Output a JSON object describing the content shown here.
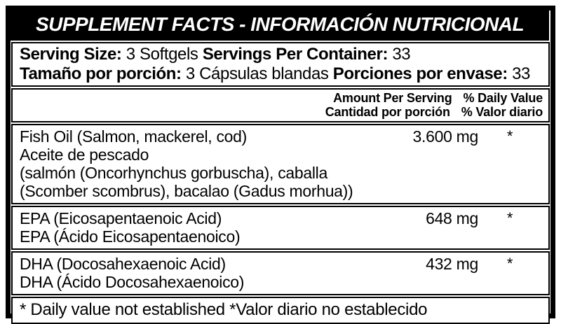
{
  "title": "SUPPLEMENT FACTS - INFORMACIÓN NUTRICIONAL",
  "serving": {
    "line1": {
      "label1": "Serving Size:",
      "value1": "3 Softgels",
      "label2": "Servings Per Container:",
      "value2": "33"
    },
    "line2": {
      "label1": "Tamaño por porción:",
      "value1": "3 Cápsulas blandas",
      "label2": "Porciones por envase:",
      "value2": "33"
    }
  },
  "columns": {
    "amount_en": "Amount Per Serving",
    "amount_es": "Cantidad por porción",
    "dv_en": "% Daily Value",
    "dv_es": "% Valor diario"
  },
  "rows": [
    {
      "lines": [
        "Fish Oil (Salmon, mackerel, cod)",
        "Aceite de pescado",
        "(salmón (Oncorhynchus gorbuscha), caballa",
        "(Scomber scombrus), bacalao (Gadus morhua))"
      ],
      "amount": "3.600 mg",
      "daily_value": "*"
    },
    {
      "lines": [
        "EPA (Eicosapentaenoic Acid)",
        "EPA (Ácido Eicosapentaenoico)"
      ],
      "amount": "648 mg",
      "daily_value": "*"
    },
    {
      "lines": [
        "DHA (Docosahexaenoic Acid)",
        "DHA (Ácido Docosahexaenoico)"
      ],
      "amount": "432 mg",
      "daily_value": "*"
    }
  ],
  "footnote": "* Daily value not established *Valor diario no establecido",
  "colors": {
    "ink": "#000000",
    "paper": "#ffffff"
  }
}
